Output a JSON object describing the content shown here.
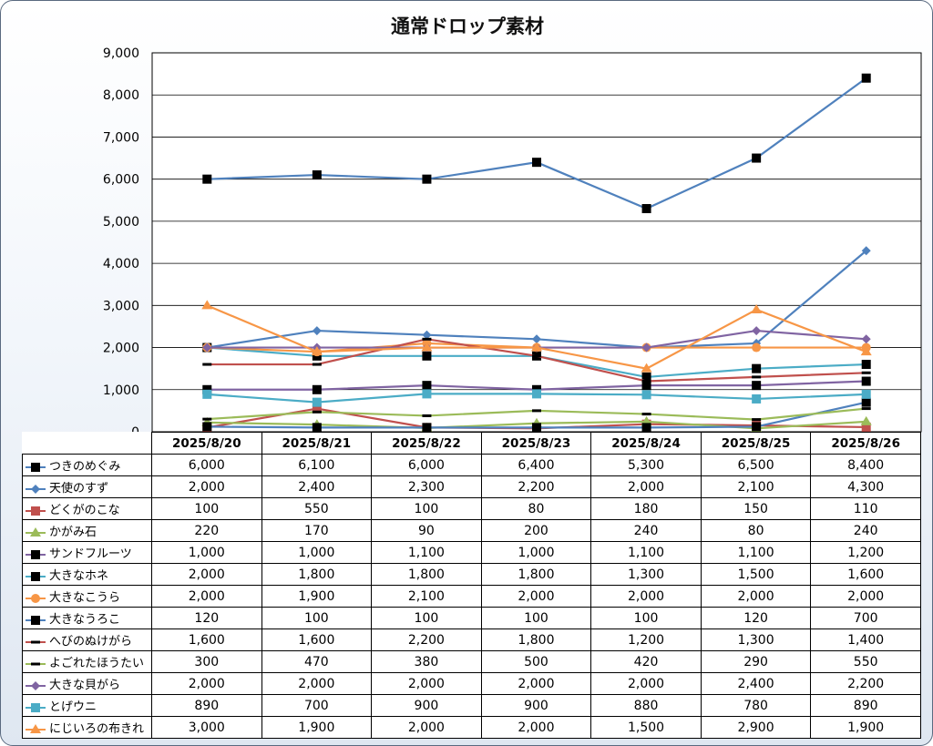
{
  "chart_data": {
    "type": "line",
    "title": "通常ドロップ素材",
    "xlabel": "",
    "ylabel": "",
    "ylim": [
      0,
      9000
    ],
    "y_ticks": [
      "0",
      "1,000",
      "2,000",
      "3,000",
      "4,000",
      "5,000",
      "6,000",
      "7,000",
      "8,000",
      "9,000"
    ],
    "grid": true,
    "legend": "data-table",
    "categories": [
      "2025/8/20",
      "2025/8/21",
      "2025/8/22",
      "2025/8/23",
      "2025/8/24",
      "2025/8/25",
      "2025/8/26"
    ],
    "series": [
      {
        "name": "つきのめぐみ",
        "color": "#4f81bd",
        "marker": "square-black",
        "values": [
          6000,
          6100,
          6000,
          6400,
          5300,
          6500,
          8400
        ],
        "labels": [
          "6,000",
          "6,100",
          "6,000",
          "6,400",
          "5,300",
          "6,500",
          "8,400"
        ]
      },
      {
        "name": "天使のすず",
        "color": "#4f81bd",
        "marker": "diamond",
        "values": [
          2000,
          2400,
          2300,
          2200,
          2000,
          2100,
          4300
        ],
        "labels": [
          "2,000",
          "2,400",
          "2,300",
          "2,200",
          "2,000",
          "2,100",
          "4,300"
        ]
      },
      {
        "name": "どくがのこな",
        "color": "#c0504d",
        "marker": "square",
        "values": [
          100,
          550,
          100,
          80,
          180,
          150,
          110
        ],
        "labels": [
          "100",
          "550",
          "100",
          "80",
          "180",
          "150",
          "110"
        ]
      },
      {
        "name": "かがみ石",
        "color": "#9bbb59",
        "marker": "triangle",
        "values": [
          220,
          170,
          90,
          200,
          240,
          80,
          240
        ],
        "labels": [
          "220",
          "170",
          "90",
          "200",
          "240",
          "80",
          "240"
        ]
      },
      {
        "name": "サンドフルーツ",
        "color": "#8064a2",
        "marker": "square-black",
        "values": [
          1000,
          1000,
          1100,
          1000,
          1100,
          1100,
          1200
        ],
        "labels": [
          "1,000",
          "1,000",
          "1,100",
          "1,000",
          "1,100",
          "1,100",
          "1,200"
        ]
      },
      {
        "name": "大きなホネ",
        "color": "#4bacc6",
        "marker": "square-black",
        "values": [
          2000,
          1800,
          1800,
          1800,
          1300,
          1500,
          1600
        ],
        "labels": [
          "2,000",
          "1,800",
          "1,800",
          "1,800",
          "1,300",
          "1,500",
          "1,600"
        ]
      },
      {
        "name": "大きなこうら",
        "color": "#f79646",
        "marker": "circle",
        "values": [
          2000,
          1900,
          2100,
          2000,
          2000,
          2000,
          2000
        ],
        "labels": [
          "2,000",
          "1,900",
          "2,100",
          "2,000",
          "2,000",
          "2,000",
          "2,000"
        ]
      },
      {
        "name": "大きなうろこ",
        "color": "#4f81bd",
        "marker": "square-black",
        "values": [
          120,
          100,
          100,
          100,
          100,
          120,
          700
        ],
        "labels": [
          "120",
          "100",
          "100",
          "100",
          "100",
          "120",
          "700"
        ]
      },
      {
        "name": "へびのぬけがら",
        "color": "#c0504d",
        "marker": "dash",
        "values": [
          1600,
          1600,
          2200,
          1800,
          1200,
          1300,
          1400
        ],
        "labels": [
          "1,600",
          "1,600",
          "2,200",
          "1,800",
          "1,200",
          "1,300",
          "1,400"
        ]
      },
      {
        "name": "よごれたほうたい",
        "color": "#9bbb59",
        "marker": "dash",
        "values": [
          300,
          470,
          380,
          500,
          420,
          290,
          550
        ],
        "labels": [
          "300",
          "470",
          "380",
          "500",
          "420",
          "290",
          "550"
        ]
      },
      {
        "name": "大きな貝がら",
        "color": "#8064a2",
        "marker": "diamond",
        "values": [
          2000,
          2000,
          2000,
          2000,
          2000,
          2400,
          2200
        ],
        "labels": [
          "2,000",
          "2,000",
          "2,000",
          "2,000",
          "2,000",
          "2,400",
          "2,200"
        ]
      },
      {
        "name": "とげウニ",
        "color": "#4bacc6",
        "marker": "square",
        "values": [
          890,
          700,
          900,
          900,
          880,
          780,
          890
        ],
        "labels": [
          "890",
          "700",
          "900",
          "900",
          "880",
          "780",
          "890"
        ]
      },
      {
        "name": "にじいろの布きれ",
        "color": "#f79646",
        "marker": "triangle",
        "values": [
          3000,
          1900,
          2000,
          2000,
          1500,
          2900,
          1900
        ],
        "labels": [
          "3,000",
          "1,900",
          "2,000",
          "2,000",
          "1,500",
          "2,900",
          "1,900"
        ]
      }
    ]
  }
}
